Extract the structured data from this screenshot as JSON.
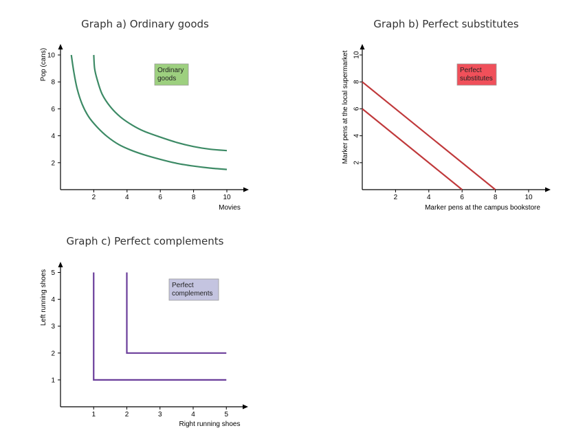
{
  "chart_data": [
    {
      "type": "line",
      "title": "Graph a) Ordinary goods",
      "xlabel": "Movies",
      "ylabel": "Pop (cans)",
      "xlim": [
        0,
        11
      ],
      "ylim": [
        0,
        10.5
      ],
      "xticks": [
        2,
        4,
        6,
        8,
        10
      ],
      "yticks": [
        2,
        4,
        6,
        8,
        10
      ],
      "legend": {
        "label": "Ordinary\ngoods",
        "color": "#9dd07f",
        "position": "top-center"
      },
      "line_color": "#3c8a65",
      "series": [
        {
          "x": [
            0.65,
            0.8,
            1.0,
            1.3,
            1.7,
            2.2,
            2.8,
            3.5,
            4.2,
            5.0,
            6.0,
            7.0,
            8.0,
            9.0,
            10.0
          ],
          "y": [
            10.0,
            8.75,
            7.5,
            6.35,
            5.4,
            4.65,
            3.95,
            3.35,
            2.95,
            2.6,
            2.25,
            1.95,
            1.75,
            1.6,
            1.5
          ]
        },
        {
          "x": [
            2.0,
            2.05,
            2.2,
            2.5,
            3.0,
            3.6,
            4.3,
            5.0,
            6.0,
            7.0,
            8.0,
            9.0,
            10.0
          ],
          "y": [
            10.0,
            9.0,
            8.2,
            7.1,
            6.15,
            5.4,
            4.8,
            4.35,
            3.9,
            3.5,
            3.2,
            3.0,
            2.9
          ]
        }
      ]
    },
    {
      "type": "line",
      "title": "Graph b) Perfect substitutes",
      "xlabel": "Marker pens at the campus bookstore",
      "ylabel": "Marker pens at the local supermarket",
      "xlim": [
        0,
        11
      ],
      "ylim": [
        0,
        10.5
      ],
      "xticks": [
        2,
        4,
        6,
        8,
        10
      ],
      "yticks": [
        2,
        4,
        6,
        8,
        10
      ],
      "legend": {
        "label": "Perfect\nsubstitutes",
        "color": "#f0505a",
        "position": "top-center"
      },
      "line_color": "#c0393b",
      "series": [
        {
          "x": [
            0,
            6
          ],
          "y": [
            6,
            0
          ]
        },
        {
          "x": [
            0,
            8
          ],
          "y": [
            8,
            0
          ]
        }
      ]
    },
    {
      "type": "line",
      "title": "Graph c) Perfect complements",
      "xlabel": "Right running shoes",
      "ylabel": "Left running shoes",
      "xlim": [
        0,
        5.5
      ],
      "ylim": [
        0,
        5.3
      ],
      "xticks": [
        1,
        2,
        3,
        4,
        5
      ],
      "yticks": [
        1,
        2,
        3,
        4,
        5
      ],
      "legend": {
        "label": "Perfect\ncomplements",
        "color": "#c4c4e0",
        "position": "top-center"
      },
      "line_color": "#6a3d9a",
      "series": [
        {
          "x": [
            1,
            1,
            5
          ],
          "y": [
            5,
            1,
            1
          ]
        },
        {
          "x": [
            2,
            2,
            5
          ],
          "y": [
            5,
            2,
            2
          ]
        }
      ]
    }
  ]
}
